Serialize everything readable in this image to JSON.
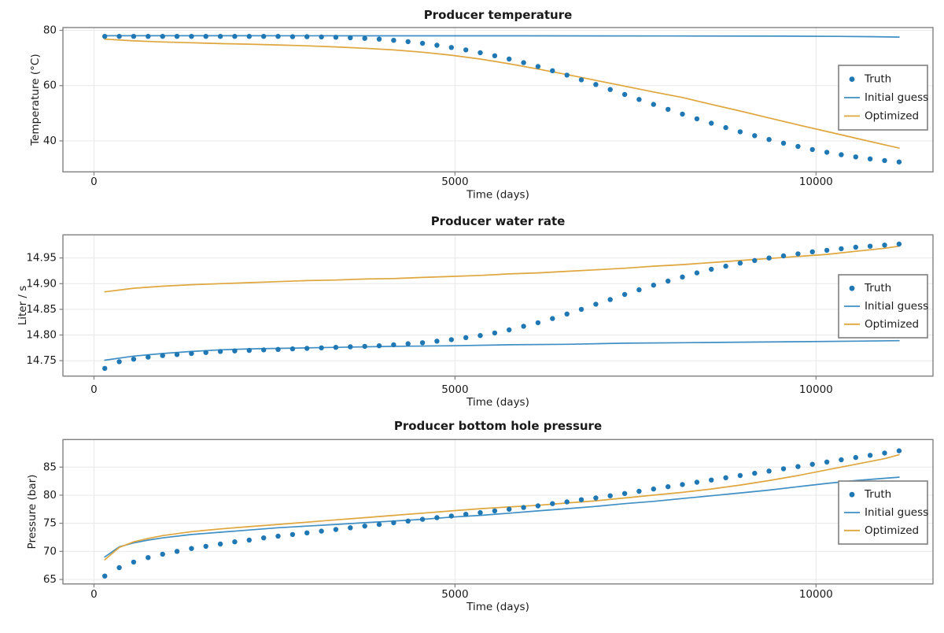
{
  "figure": {
    "background": "#ffffff"
  },
  "colors": {
    "truth": "#1f77b4",
    "initial_guess": "#3f8fc5",
    "optimized": "#dfa63d",
    "spine": "#7f7f7f",
    "grid": "#e8e8e8",
    "text": "#1a1a1a",
    "legend_border": "#7f7f7f",
    "legend_bg": "#ffffff"
  },
  "legend": {
    "items": [
      {
        "label": "Truth",
        "marker": "dot",
        "color_key": "truth"
      },
      {
        "label": "Initial guess",
        "marker": "line",
        "color_key": "initial_guess"
      },
      {
        "label": "Optimized",
        "marker": "line",
        "color_key": "optimized"
      }
    ]
  },
  "chart_data": [
    {
      "type": "scatter+line",
      "title": "Producer temperature",
      "xlabel": "Time (days)",
      "ylabel": "Temperature (°C)",
      "xlim": [
        -430,
        11620
      ],
      "ylim": [
        28.8,
        81.0
      ],
      "xtick_values": [
        0,
        5000,
        10000
      ],
      "xtick_labels": [
        "0",
        "5000",
        "10000"
      ],
      "ytick_values": [
        40,
        60,
        80
      ],
      "ytick_labels": [
        "40",
        "60",
        "80"
      ],
      "grid": true,
      "legend_position": "center right",
      "series": [
        {
          "name": "Truth",
          "type": "scatter",
          "color_key": "truth",
          "t_start": 150,
          "t_step": 200,
          "values": [
            77.8,
            77.8,
            77.8,
            77.8,
            77.8,
            77.8,
            77.8,
            77.8,
            77.8,
            77.8,
            77.8,
            77.8,
            77.8,
            77.7,
            77.7,
            77.6,
            77.5,
            77.3,
            77.1,
            76.8,
            76.4,
            75.9,
            75.3,
            74.6,
            73.8,
            72.9,
            71.9,
            70.8,
            69.6,
            68.3,
            66.9,
            65.4,
            63.8,
            62.1,
            60.4,
            58.6,
            56.8,
            55.0,
            53.2,
            51.4,
            49.7,
            48.0,
            46.4,
            44.8,
            43.3,
            41.9,
            40.5,
            39.2,
            38.0,
            36.9,
            35.9,
            35.0,
            34.2,
            33.5,
            32.9,
            32.4
          ]
        },
        {
          "name": "Initial guess",
          "type": "line",
          "color_key": "initial_guess",
          "points": [
            [
              150,
              78.05
            ],
            [
              2000,
              78.05
            ],
            [
              4000,
              78.0
            ],
            [
              6000,
              78.0
            ],
            [
              8000,
              77.95
            ],
            [
              9500,
              77.9
            ],
            [
              10300,
              77.8
            ],
            [
              10800,
              77.7
            ],
            [
              11150,
              77.55
            ]
          ]
        },
        {
          "name": "Optimized",
          "type": "line",
          "color_key": "optimized",
          "points": [
            [
              150,
              76.8
            ],
            [
              550,
              76.2
            ],
            [
              950,
              75.8
            ],
            [
              1350,
              75.5
            ],
            [
              1750,
              75.2
            ],
            [
              2150,
              75.0
            ],
            [
              2550,
              74.7
            ],
            [
              2950,
              74.4
            ],
            [
              3350,
              74.0
            ],
            [
              3750,
              73.5
            ],
            [
              4150,
              72.9
            ],
            [
              4550,
              72.1
            ],
            [
              4950,
              71.0
            ],
            [
              5350,
              69.6
            ],
            [
              5750,
              67.9
            ],
            [
              6150,
              66.0
            ],
            [
              6550,
              64.0
            ],
            [
              6950,
              61.9
            ],
            [
              7350,
              59.8
            ],
            [
              7750,
              57.7
            ],
            [
              8150,
              55.7
            ],
            [
              8550,
              53.2
            ],
            [
              8950,
              50.8
            ],
            [
              9350,
              48.3
            ],
            [
              9750,
              45.8
            ],
            [
              10150,
              43.4
            ],
            [
              10550,
              41.0
            ],
            [
              10950,
              38.6
            ],
            [
              11150,
              37.4
            ]
          ]
        }
      ]
    },
    {
      "type": "scatter+line",
      "title": "Producer water rate",
      "xlabel": "Time (days)",
      "ylabel": "Liter / s",
      "xlim": [
        -430,
        11620
      ],
      "ylim": [
        14.72,
        14.995
      ],
      "xtick_values": [
        0,
        5000,
        10000
      ],
      "xtick_labels": [
        "0",
        "5000",
        "10000"
      ],
      "ytick_values": [
        14.75,
        14.8,
        14.85,
        14.9,
        14.95
      ],
      "ytick_labels": [
        "14.75",
        "14.80",
        "14.85",
        "14.90",
        "14.95"
      ],
      "grid": true,
      "legend_position": "center right",
      "series": [
        {
          "name": "Truth",
          "type": "scatter",
          "color_key": "truth",
          "t_start": 150,
          "t_step": 200,
          "values": [
            14.735,
            14.748,
            14.753,
            14.757,
            14.76,
            14.762,
            14.764,
            14.766,
            14.768,
            14.769,
            14.77,
            14.771,
            14.772,
            14.773,
            14.774,
            14.775,
            14.776,
            14.777,
            14.778,
            14.779,
            14.781,
            14.783,
            14.785,
            14.788,
            14.791,
            14.795,
            14.799,
            14.804,
            14.81,
            14.817,
            14.824,
            14.832,
            14.841,
            14.85,
            14.86,
            14.869,
            14.879,
            14.888,
            14.897,
            14.905,
            14.913,
            14.921,
            14.928,
            14.934,
            14.94,
            14.945,
            14.95,
            14.954,
            14.958,
            14.962,
            14.965,
            14.968,
            14.971,
            14.973,
            14.975,
            14.977
          ]
        },
        {
          "name": "Initial guess",
          "type": "line",
          "color_key": "initial_guess",
          "points": [
            [
              150,
              14.751
            ],
            [
              550,
              14.759
            ],
            [
              950,
              14.764
            ],
            [
              1350,
              14.768
            ],
            [
              1750,
              14.771
            ],
            [
              2150,
              14.773
            ],
            [
              2550,
              14.774
            ],
            [
              3350,
              14.776
            ],
            [
              4150,
              14.778
            ],
            [
              4950,
              14.779
            ],
            [
              5750,
              14.781
            ],
            [
              6550,
              14.782
            ],
            [
              7350,
              14.784
            ],
            [
              8150,
              14.785
            ],
            [
              8950,
              14.786
            ],
            [
              9750,
              14.787
            ],
            [
              10550,
              14.788
            ],
            [
              11150,
              14.789
            ]
          ]
        },
        {
          "name": "Optimized",
          "type": "line",
          "color_key": "optimized",
          "points": [
            [
              150,
              14.884
            ],
            [
              550,
              14.891
            ],
            [
              950,
              14.895
            ],
            [
              1350,
              14.898
            ],
            [
              1750,
              14.9
            ],
            [
              2150,
              14.902
            ],
            [
              2550,
              14.904
            ],
            [
              2950,
              14.906
            ],
            [
              3350,
              14.907
            ],
            [
              3750,
              14.909
            ],
            [
              4150,
              14.91
            ],
            [
              4550,
              14.912
            ],
            [
              4950,
              14.914
            ],
            [
              5350,
              14.916
            ],
            [
              5750,
              14.919
            ],
            [
              6150,
              14.921
            ],
            [
              6550,
              14.924
            ],
            [
              6950,
              14.927
            ],
            [
              7350,
              14.93
            ],
            [
              7750,
              14.934
            ],
            [
              8150,
              14.937
            ],
            [
              8550,
              14.941
            ],
            [
              8950,
              14.945
            ],
            [
              9350,
              14.949
            ],
            [
              9750,
              14.953
            ],
            [
              10150,
              14.957
            ],
            [
              10550,
              14.963
            ],
            [
              10950,
              14.969
            ],
            [
              11150,
              14.973
            ]
          ]
        }
      ]
    },
    {
      "type": "scatter+line",
      "title": "Producer bottom hole pressure",
      "xlabel": "Time (days)",
      "ylabel": "Pressure (bar)",
      "xlim": [
        -430,
        11620
      ],
      "ylim": [
        64.2,
        89.9
      ],
      "xtick_values": [
        0,
        5000,
        10000
      ],
      "xtick_labels": [
        "0",
        "5000",
        "10000"
      ],
      "ytick_values": [
        65,
        70,
        75,
        80,
        85
      ],
      "ytick_labels": [
        "65",
        "70",
        "75",
        "80",
        "85"
      ],
      "grid": true,
      "legend_position": "center right",
      "series": [
        {
          "name": "Truth",
          "type": "scatter",
          "color_key": "truth",
          "t_start": 150,
          "t_step": 200,
          "values": [
            65.6,
            67.1,
            68.1,
            68.9,
            69.5,
            70.0,
            70.5,
            70.9,
            71.3,
            71.7,
            72.0,
            72.4,
            72.7,
            73.0,
            73.3,
            73.6,
            73.9,
            74.2,
            74.5,
            74.8,
            75.1,
            75.4,
            75.7,
            76.0,
            76.3,
            76.6,
            76.9,
            77.2,
            77.5,
            77.8,
            78.1,
            78.5,
            78.8,
            79.2,
            79.5,
            79.9,
            80.3,
            80.7,
            81.1,
            81.5,
            81.9,
            82.3,
            82.7,
            83.1,
            83.5,
            83.9,
            84.3,
            84.7,
            85.1,
            85.5,
            85.9,
            86.3,
            86.7,
            87.1,
            87.5,
            87.9
          ]
        },
        {
          "name": "Initial guess",
          "type": "line",
          "color_key": "initial_guess",
          "points": [
            [
              150,
              69.0
            ],
            [
              350,
              70.8
            ],
            [
              550,
              71.5
            ],
            [
              750,
              72.0
            ],
            [
              950,
              72.4
            ],
            [
              1350,
              73.0
            ],
            [
              1750,
              73.4
            ],
            [
              2150,
              73.8
            ],
            [
              2550,
              74.2
            ],
            [
              2950,
              74.5
            ],
            [
              3350,
              74.8
            ],
            [
              3750,
              75.1
            ],
            [
              4150,
              75.4
            ],
            [
              4550,
              75.7
            ],
            [
              4950,
              76.1
            ],
            [
              5350,
              76.4
            ],
            [
              5750,
              76.8
            ],
            [
              6150,
              77.2
            ],
            [
              6550,
              77.6
            ],
            [
              6950,
              78.0
            ],
            [
              7350,
              78.5
            ],
            [
              7750,
              78.9
            ],
            [
              8150,
              79.4
            ],
            [
              8550,
              79.9
            ],
            [
              8950,
              80.4
            ],
            [
              9350,
              80.9
            ],
            [
              9750,
              81.5
            ],
            [
              10150,
              82.1
            ],
            [
              10550,
              82.6
            ],
            [
              10950,
              83.0
            ],
            [
              11150,
              83.2
            ]
          ]
        },
        {
          "name": "Optimized",
          "type": "line",
          "color_key": "optimized",
          "points": [
            [
              150,
              68.5
            ],
            [
              350,
              70.7
            ],
            [
              550,
              71.7
            ],
            [
              750,
              72.3
            ],
            [
              950,
              72.8
            ],
            [
              1350,
              73.5
            ],
            [
              1750,
              74.0
            ],
            [
              2150,
              74.4
            ],
            [
              2550,
              74.8
            ],
            [
              2950,
              75.2
            ],
            [
              3350,
              75.6
            ],
            [
              3750,
              76.0
            ],
            [
              4150,
              76.4
            ],
            [
              4550,
              76.8
            ],
            [
              4950,
              77.2
            ],
            [
              5350,
              77.6
            ],
            [
              5750,
              77.9
            ],
            [
              6150,
              78.2
            ],
            [
              6550,
              78.6
            ],
            [
              6950,
              79.0
            ],
            [
              7350,
              79.5
            ],
            [
              7750,
              80.0
            ],
            [
              8150,
              80.5
            ],
            [
              8550,
              81.1
            ],
            [
              8950,
              81.8
            ],
            [
              9350,
              82.6
            ],
            [
              9750,
              83.5
            ],
            [
              10150,
              84.5
            ],
            [
              10550,
              85.5
            ],
            [
              10950,
              86.5
            ],
            [
              11150,
              87.2
            ]
          ]
        }
      ]
    }
  ]
}
